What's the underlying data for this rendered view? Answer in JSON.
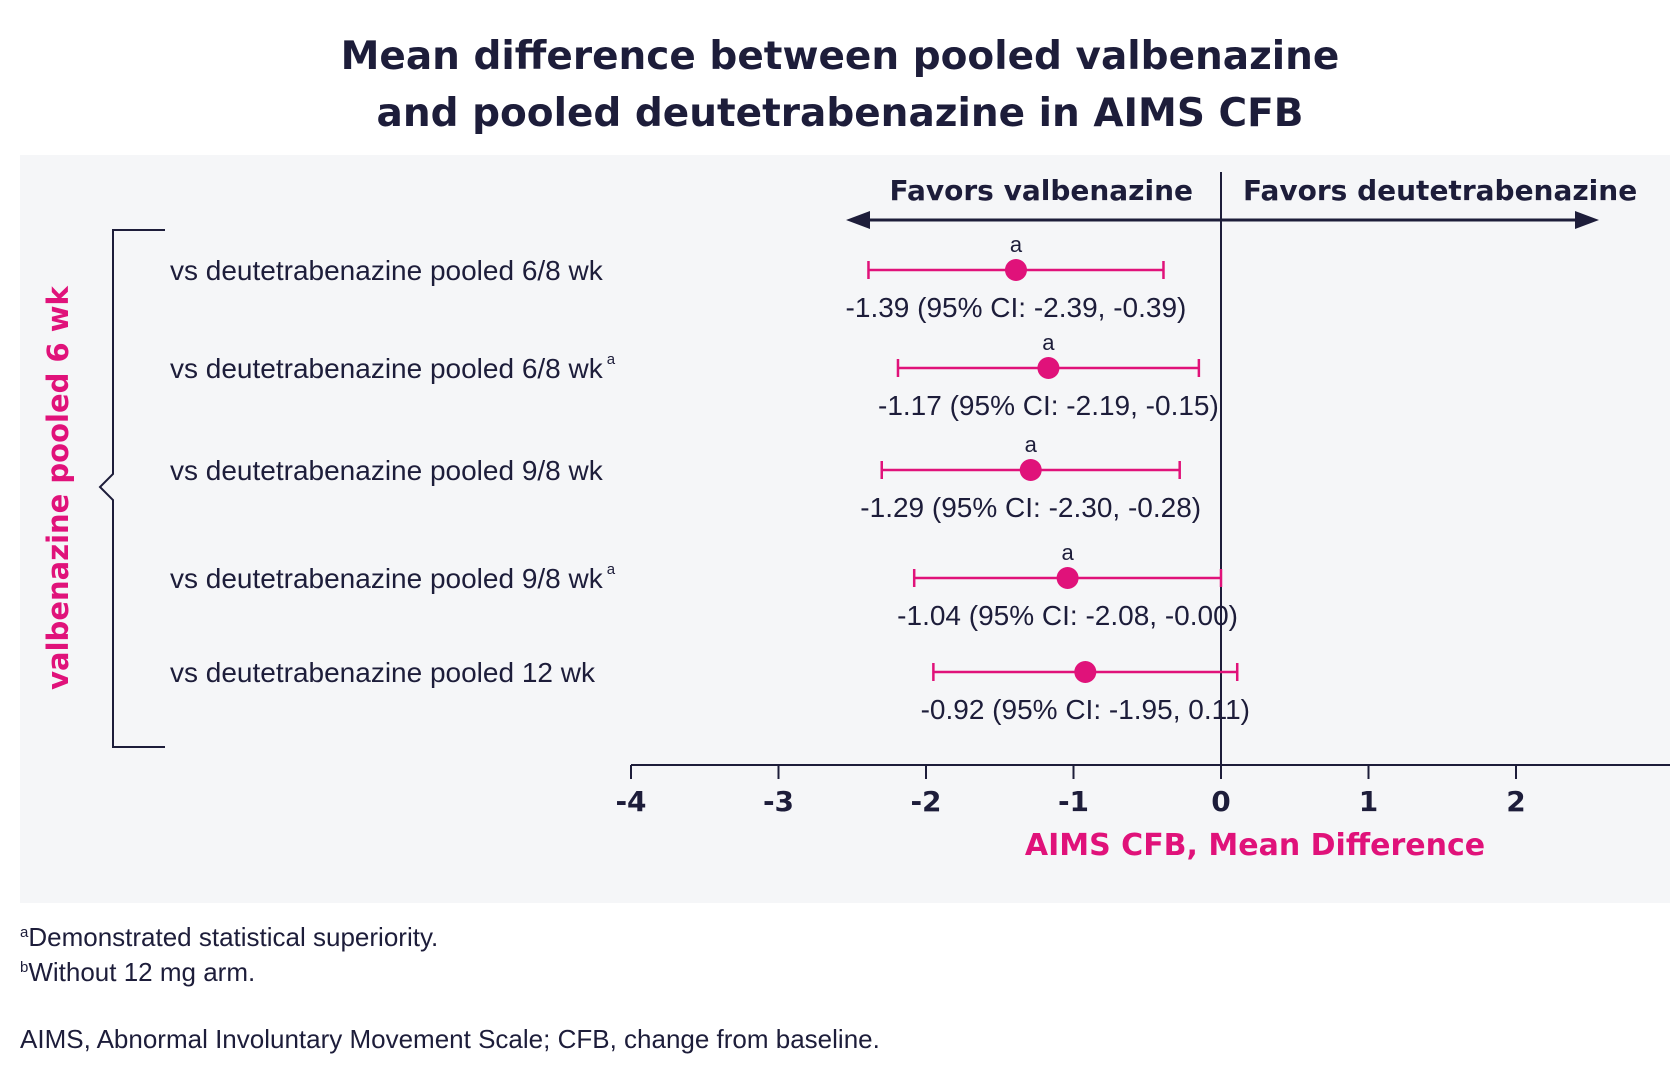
{
  "title": {
    "line1": "Mean difference between pooled valbenazine",
    "line2": "and pooled deutetrabenazine in AIMS CFB"
  },
  "chart_data": {
    "type": "forest",
    "group_label": "valbenazine pooled 6 wk",
    "favors_left": "Favors valbenazine",
    "favors_right": "Favors deutetrabenazine",
    "xlabel": "AIMS CFB, Mean Difference",
    "xlim": [
      -4,
      3
    ],
    "xticks": [
      "-4",
      "-3",
      "-2",
      "-1",
      "0",
      "1",
      "2"
    ],
    "rows": [
      {
        "label": "vs deutetrabenazine pooled 6/8 wk",
        "sup": "",
        "mark": "a",
        "mean": -1.39,
        "lo": -2.39,
        "hi": -0.39,
        "text": "-1.39 (95% CI: -2.39, -0.39)"
      },
      {
        "label": "vs deutetrabenazine pooled 6/8 wk",
        "sup": "a",
        "mark": "a",
        "mean": -1.17,
        "lo": -2.19,
        "hi": -0.15,
        "text": "-1.17 (95% CI: -2.19, -0.15)"
      },
      {
        "label": "vs deutetrabenazine pooled 9/8 wk",
        "sup": "",
        "mark": "a",
        "mean": -1.29,
        "lo": -2.3,
        "hi": -0.28,
        "text": "-1.29 (95% CI: -2.30, -0.28)"
      },
      {
        "label": "vs deutetrabenazine pooled 9/8 wk",
        "sup": "a",
        "mark": "a",
        "mean": -1.04,
        "lo": -2.08,
        "hi": -0.0,
        "text": "-1.04 (95% CI: -2.08, -0.00)"
      },
      {
        "label": "vs deutetrabenazine pooled 12 wk",
        "sup": "",
        "mark": "",
        "mean": -0.92,
        "lo": -1.95,
        "hi": 0.11,
        "text": "-0.92 (95% CI: -1.95, 0.11)"
      }
    ],
    "colors": {
      "accent": "#e0127a",
      "ink": "#1d1d3a",
      "panel": "#f5f6f8"
    }
  },
  "footnotes": {
    "a_sup": "a",
    "a_text": "Demonstrated statistical superiority.",
    "b_sup": "b",
    "b_text": "Without 12 mg arm.",
    "abbrev": "AIMS, Abnormal Involuntary Movement Scale; CFB, change from baseline."
  }
}
